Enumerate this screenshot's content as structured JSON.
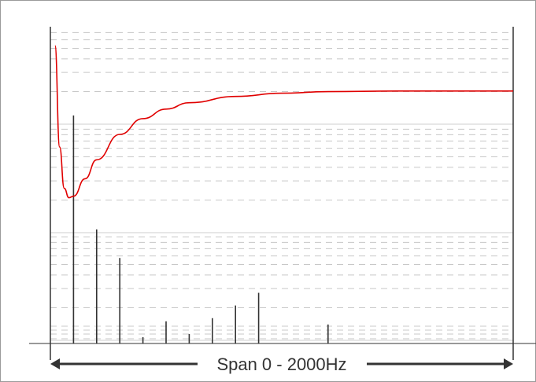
{
  "chart_data": {
    "type": "line",
    "title": "",
    "xlabel": "",
    "ylabel": "",
    "span_label": "Span 0 - 2000Hz",
    "xlim": [
      0,
      2000
    ],
    "grid": true,
    "series": [
      {
        "kind": "curve",
        "color": "#e00000",
        "x": [
          20,
          40,
          60,
          80,
          100,
          150,
          200,
          300,
          400,
          500,
          600,
          800,
          1000,
          1200,
          1500,
          1800,
          2000
        ],
        "y": [
          0.94,
          0.62,
          0.49,
          0.46,
          0.465,
          0.52,
          0.58,
          0.66,
          0.71,
          0.74,
          0.76,
          0.78,
          0.79,
          0.795,
          0.797,
          0.797,
          0.797
        ]
      },
      {
        "kind": "stems",
        "color": "#333333",
        "x": [
          100,
          200,
          300,
          400,
          500,
          600,
          700,
          800,
          900,
          1000,
          1200
        ],
        "y": [
          0.72,
          0.36,
          0.27,
          0.02,
          0.07,
          0.03,
          0.08,
          0.12,
          0.16,
          0.0,
          0.06
        ]
      }
    ]
  }
}
